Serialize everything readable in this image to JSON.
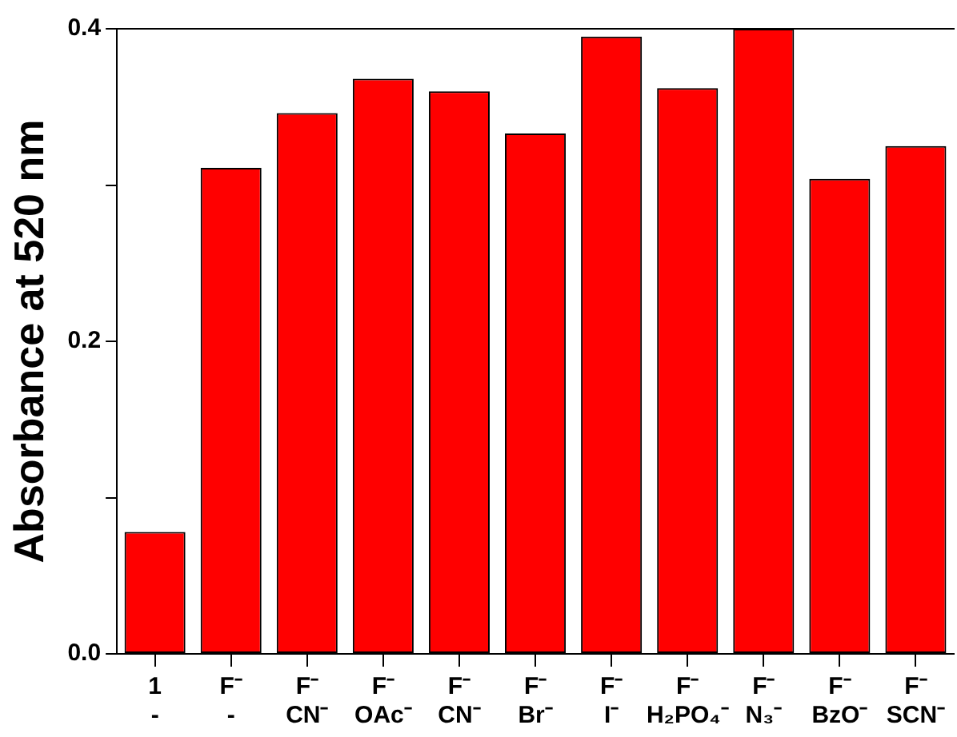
{
  "chart_data": {
    "type": "bar",
    "ylabel": "Absorbance at 520 nm",
    "categories": [
      "1\n-",
      "F⁻\n-",
      "F⁻\nCN⁻",
      "F⁻\nOAc⁻",
      "F⁻\nCN⁻",
      "F⁻\nBr⁻",
      "F⁻\nI⁻",
      "F⁻\nH₂PO₄⁻",
      "F⁻\nN₃⁻",
      "F⁻\nBzO⁻",
      "F⁻\nSCN⁻"
    ],
    "values": [
      0.078,
      0.311,
      0.346,
      0.368,
      0.36,
      0.333,
      0.395,
      0.362,
      0.4,
      0.304,
      0.325
    ],
    "color": "#ff0000",
    "ylim": [
      0,
      0.4
    ],
    "yticks": [
      {
        "value": 0,
        "label": "0.0"
      },
      {
        "value": 0.1,
        "label": null
      },
      {
        "value": 0.2,
        "label": "0.2"
      },
      {
        "value": 0.3,
        "label": null
      },
      {
        "value": 0.4,
        "label": "0.4"
      }
    ],
    "grid": false,
    "legend": false
  }
}
